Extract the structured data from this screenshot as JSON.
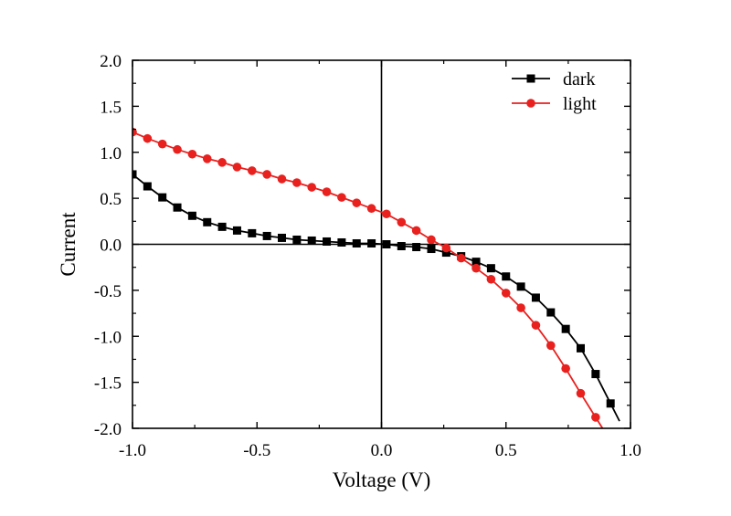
{
  "chart_data": {
    "type": "line",
    "title": "",
    "xlabel": "Voltage (V)",
    "ylabel": "Current",
    "xlim": [
      -1.0,
      1.0
    ],
    "ylim": [
      -2.0,
      2.0
    ],
    "x_ticks": [
      -1.0,
      -0.5,
      0.0,
      0.5,
      1.0
    ],
    "x_tick_labels": [
      "-1.0",
      "-0.5",
      "0.0",
      "0.5",
      "1.0"
    ],
    "y_ticks": [
      2.0,
      1.5,
      1.0,
      0.5,
      0.0,
      -0.5,
      -1.0,
      -1.5,
      -2.0
    ],
    "y_tick_labels": [
      "2.0",
      "1.5",
      "1.0",
      "0.5",
      "0.0",
      "-0.5",
      "-1.0",
      "-1.5",
      "-2.0"
    ],
    "grid": false,
    "zero_lines": true,
    "legend_position": "top-right",
    "series": [
      {
        "name": "dark",
        "color": "#000000",
        "marker": "square",
        "x": [
          -1.0,
          -0.94,
          -0.88,
          -0.82,
          -0.76,
          -0.7,
          -0.64,
          -0.58,
          -0.52,
          -0.46,
          -0.4,
          -0.34,
          -0.28,
          -0.22,
          -0.16,
          -0.1,
          -0.04,
          0.02,
          0.08,
          0.14,
          0.2,
          0.26,
          0.32,
          0.38,
          0.44,
          0.5,
          0.56,
          0.62,
          0.68,
          0.74,
          0.8,
          0.86,
          0.92
        ],
        "y": [
          0.76,
          0.63,
          0.51,
          0.4,
          0.31,
          0.24,
          0.19,
          0.15,
          0.12,
          0.09,
          0.07,
          0.05,
          0.04,
          0.03,
          0.02,
          0.01,
          0.01,
          0.0,
          -0.02,
          -0.03,
          -0.05,
          -0.09,
          -0.13,
          -0.19,
          -0.26,
          -0.35,
          -0.46,
          -0.58,
          -0.74,
          -0.92,
          -1.13,
          -1.41,
          -1.73
        ]
      },
      {
        "name": "light",
        "color": "#e8211f",
        "marker": "circle",
        "x": [
          -1.0,
          -0.94,
          -0.88,
          -0.82,
          -0.76,
          -0.7,
          -0.64,
          -0.58,
          -0.52,
          -0.46,
          -0.4,
          -0.34,
          -0.28,
          -0.22,
          -0.16,
          -0.1,
          -0.04,
          0.02,
          0.08,
          0.14,
          0.2,
          0.26,
          0.32,
          0.38,
          0.44,
          0.5,
          0.56,
          0.62,
          0.68,
          0.74,
          0.8,
          0.86
        ],
        "y": [
          1.22,
          1.15,
          1.09,
          1.03,
          0.98,
          0.93,
          0.89,
          0.84,
          0.8,
          0.76,
          0.71,
          0.67,
          0.62,
          0.57,
          0.51,
          0.45,
          0.39,
          0.33,
          0.24,
          0.15,
          0.05,
          -0.04,
          -0.15,
          -0.26,
          -0.38,
          -0.53,
          -0.69,
          -0.88,
          -1.1,
          -1.35,
          -1.62,
          -1.88
        ]
      }
    ]
  }
}
